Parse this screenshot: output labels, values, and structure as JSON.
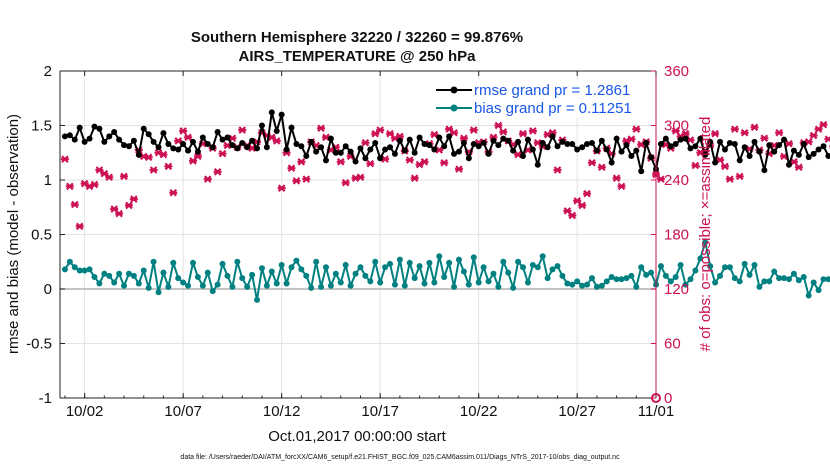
{
  "chart_data": {
    "type": "line",
    "title": "Southern Hemisphere 32220 / 32260 = 99.876%",
    "subtitle": "AIRS_TEMPERATURE @ 250 hPa",
    "xlabel": "Oct.01,2017 00:00:00 start",
    "ylabel": "rmse and bias (model - observation)",
    "ylabel_right": "# of obs: o=possible; ×=assimilated",
    "footnote": "data file: /Users/raeder/DAI/ATM_forcXX/CAM6_setup/f.e21.FHIST_BGC.f09_025.CAM6assim.011/Diags_NTrS_2017-10/obs_diag_output.nc",
    "xlim": [
      0.75,
      31.0
    ],
    "ylim": [
      -1,
      2
    ],
    "ylim_right": [
      0,
      360
    ],
    "x_ticks": [
      2,
      7,
      12,
      17,
      22,
      27,
      31
    ],
    "x_tick_labels": [
      "10/02",
      "10/07",
      "10/12",
      "10/17",
      "10/22",
      "10/27",
      "11/01"
    ],
    "y_ticks": [
      -1,
      -0.5,
      0,
      0.5,
      1,
      1.5,
      2
    ],
    "y_tick_labels": [
      "-1",
      "-0.5",
      "0",
      "0.5",
      "1",
      "1.5",
      "2"
    ],
    "y_ticks_right": [
      0,
      60,
      120,
      180,
      240,
      300,
      360
    ],
    "y_tick_labels_right": [
      "0",
      "60",
      "120",
      "180",
      "240",
      "300",
      "360"
    ],
    "grid": true,
    "legend_position": "top-right",
    "colors": {
      "rmse": "#000000",
      "bias": "#008080",
      "obs": "#cc1155",
      "zero_line": "#b0b0b0",
      "legend_text": "#1a56e8"
    },
    "x_start": 1.0,
    "x_step": 0.25,
    "series": [
      {
        "name": "rmse",
        "legend": "rmse grand pr = 1.2861",
        "axis": "left",
        "values": [
          1.4,
          1.41,
          1.37,
          1.48,
          1.35,
          1.38,
          1.49,
          1.47,
          1.35,
          1.4,
          1.44,
          1.37,
          1.32,
          1.31,
          1.36,
          1.23,
          1.47,
          1.42,
          1.35,
          1.3,
          1.43,
          1.33,
          1.29,
          1.28,
          1.33,
          1.27,
          1.35,
          1.26,
          1.39,
          1.33,
          1.3,
          1.44,
          1.37,
          1.39,
          1.32,
          1.29,
          1.34,
          1.3,
          1.36,
          1.29,
          1.5,
          1.3,
          1.62,
          1.45,
          1.6,
          1.28,
          1.48,
          1.33,
          1.31,
          1.22,
          1.35,
          1.26,
          1.3,
          1.18,
          1.38,
          1.25,
          1.25,
          1.31,
          1.26,
          1.17,
          1.29,
          1.2,
          1.28,
          1.34,
          1.2,
          1.28,
          1.3,
          1.24,
          1.36,
          1.27,
          1.37,
          1.25,
          1.39,
          1.33,
          1.32,
          1.28,
          1.39,
          1.31,
          1.4,
          1.24,
          1.26,
          1.34,
          1.2,
          1.33,
          1.31,
          1.34,
          1.24,
          1.36,
          1.32,
          1.38,
          1.36,
          1.27,
          1.35,
          1.22,
          1.37,
          1.28,
          1.14,
          1.34,
          1.3,
          1.4,
          1.31,
          1.35,
          1.33,
          1.33,
          1.28,
          1.3,
          1.33,
          1.34,
          1.27,
          1.36,
          1.28,
          1.16,
          1.38,
          1.26,
          1.32,
          1.22,
          1.27,
          1.08,
          1.34,
          1.21,
          1.1,
          1.33,
          1.38,
          1.31,
          1.33,
          1.37,
          1.38,
          1.29,
          1.31,
          1.38,
          1.23,
          1.35,
          1.16,
          1.35,
          1.28,
          1.34,
          1.33,
          1.18,
          1.3,
          1.22,
          1.35,
          1.26,
          1.09,
          1.32,
          1.26,
          1.32,
          1.37,
          1.14,
          1.27,
          1.23,
          1.33,
          1.21,
          1.24,
          1.28,
          1.31,
          1.22,
          1.24,
          1.19,
          1.29,
          1.27,
          1.2,
          1.25
        ]
      },
      {
        "name": "bias",
        "legend": "bias grand pr = 0.11251",
        "axis": "left",
        "values": [
          0.18,
          0.25,
          0.2,
          0.17,
          0.17,
          0.18,
          0.11,
          0.05,
          0.14,
          0.12,
          0.06,
          0.14,
          0.03,
          0.14,
          0.12,
          0.05,
          0.17,
          0.01,
          0.25,
          -0.03,
          0.15,
          0.02,
          0.24,
          0.1,
          0.06,
          0.03,
          0.24,
          0.11,
          0.03,
          0.15,
          -0.02,
          0.04,
          0.23,
          0.12,
          0.02,
          0.25,
          0.1,
          0.02,
          0.13,
          -0.1,
          0.19,
          0.03,
          0.16,
          0.05,
          0.22,
          0.05,
          0.2,
          0.26,
          0.18,
          0.12,
          0.01,
          0.25,
          0.02,
          0.2,
          0.03,
          0.14,
          0.06,
          0.22,
          0.03,
          0.14,
          0.2,
          0.12,
          0.07,
          0.25,
          0.06,
          0.2,
          0.23,
          0.04,
          0.27,
          0.03,
          0.24,
          0.1,
          0.21,
          0.05,
          0.24,
          0.06,
          0.3,
          0.11,
          0.24,
          0.02,
          0.27,
          0.16,
          0.04,
          0.29,
          0.06,
          0.2,
          0.07,
          0.14,
          0.02,
          0.25,
          0.15,
          0.01,
          0.25,
          0.2,
          0.06,
          0.22,
          0.2,
          0.3,
          0.1,
          0.18,
          0.21,
          0.12,
          0.05,
          0.04,
          0.07,
          0.03,
          0.04,
          0.1,
          0.02,
          0.03,
          0.07,
          0.11,
          0.09,
          0.09,
          0.1,
          0.12,
          0.02,
          0.2,
          0.13,
          0.15,
          0.04,
          0.21,
          0.12,
          0.07,
          0.11,
          0.22,
          0.04,
          0.09,
          0.17,
          0.28,
          0.43,
          0.21,
          0.06,
          0.12,
          0.2,
          0.2,
          0.1,
          0.07,
          0.23,
          0.13,
          0.22,
          0.02,
          0.07,
          0.07,
          0.16,
          0.1,
          0.1,
          0.09,
          0.14,
          0.08,
          0.11,
          -0.06,
          0.06,
          -0.01,
          0.09,
          0.09,
          0.08,
          -0.05,
          -0.1,
          0.08,
          0.08,
          0.07,
          -0.18,
          0.01,
          -0.06
        ]
      },
      {
        "name": "obs_assimilated",
        "axis": "right",
        "values": [
          263,
          233,
          213,
          189,
          236,
          233,
          235,
          251,
          247,
          243,
          208,
          203,
          244,
          212,
          219,
          273,
          266,
          265,
          251,
          270,
          268,
          255,
          226,
          283,
          294,
          287,
          261,
          266,
          280,
          241,
          275,
          249,
          269,
          278,
          286,
          276,
          295,
          278,
          275,
          282,
          292,
          289,
          287,
          283,
          231,
          270,
          253,
          239,
          260,
          241,
          282,
          278,
          297,
          287,
          273,
          276,
          260,
          237,
          266,
          242,
          243,
          281,
          258,
          291,
          295,
          263,
          291,
          286,
          288,
          272,
          262,
          242,
          257,
          260,
          280,
          290,
          273,
          259,
          296,
          292,
          252,
          286,
          271,
          295,
          281,
          282,
          271,
          287,
          300,
          293,
          283,
          279,
          268,
          291,
          273,
          294,
          281,
          277,
          290,
          292,
          251,
          284,
          206,
          201,
          217,
          212,
          225,
          259,
          272,
          254,
          275,
          269,
          242,
          233,
          283,
          285,
          296,
          279,
          282,
          264,
          246,
          241,
          279,
          275,
          294,
          288,
          291,
          284,
          256,
          270,
          272,
          278,
          291,
          262,
          255,
          241,
          296,
          244,
          292,
          274,
          298,
          273,
          286,
          269,
          278,
          292,
          266,
          280,
          260,
          254,
          281,
          282,
          289,
          296,
          301,
          285,
          277,
          268,
          259,
          288,
          299,
          282,
          216,
          288,
          276
        ]
      }
    ],
    "obs_possible": 0
  }
}
